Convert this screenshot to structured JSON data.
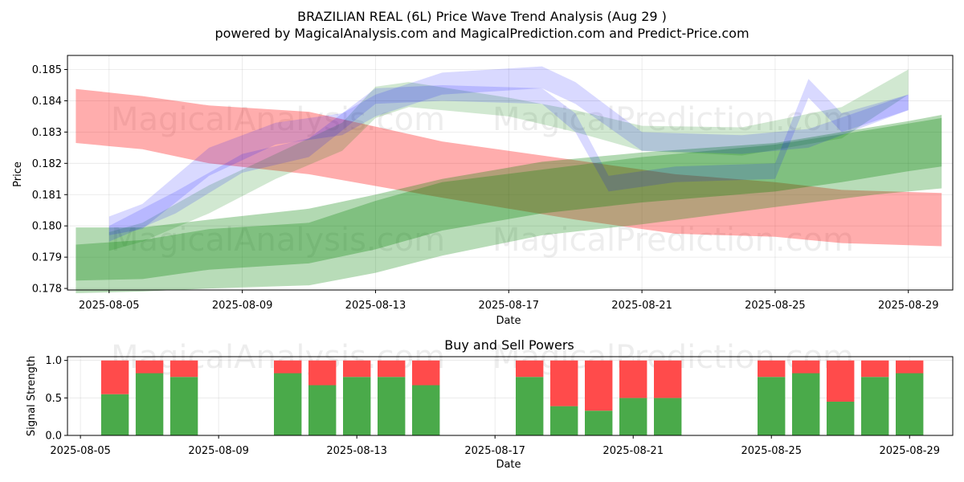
{
  "title": "BRAZILIAN REAL (6L) Price Wave Trend Analysis (Aug 29 )",
  "subtitle": "powered by MagicalAnalysis.com and MagicalPrediction.com and Predict-Price.com",
  "watermarks": [
    "MagicalAnalysis.com",
    "MagicalPrediction.com"
  ],
  "colors": {
    "red": "#ff0000",
    "green": "#008000",
    "blue": "#0000ff",
    "buy": "#4aaa4a",
    "sell": "#ff4b4b"
  },
  "chart_data": [
    {
      "type": "area",
      "title": "",
      "xlabel": "Date",
      "ylabel": "Price",
      "xlim": [
        "2025-08-03T18:00",
        "2025-08-30T08:00"
      ],
      "ylim": [
        0.17795,
        0.18545
      ],
      "x_ticks": [
        "2025-08-05",
        "2025-08-09",
        "2025-08-13",
        "2025-08-17",
        "2025-08-21",
        "2025-08-25",
        "2025-08-29"
      ],
      "y_ticks": [
        "0.178",
        "0.179",
        "0.180",
        "0.181",
        "0.182",
        "0.183",
        "0.184",
        "0.185"
      ],
      "grid": true,
      "bands": [
        {
          "color": "red",
          "opacity": 0.32,
          "x": [
            "2025-08-04",
            "2025-08-06",
            "2025-08-08",
            "2025-08-11",
            "2025-08-15",
            "2025-08-19",
            "2025-08-22",
            "2025-08-25",
            "2025-08-27",
            "2025-08-30"
          ],
          "upper": [
            0.18438,
            0.18415,
            0.18385,
            0.18365,
            0.1827,
            0.1821,
            0.18165,
            0.1814,
            0.18115,
            0.18105
          ],
          "lower": [
            0.18265,
            0.18245,
            0.182,
            0.18165,
            0.1809,
            0.1802,
            0.17975,
            0.17965,
            0.17945,
            0.17935
          ]
        },
        {
          "color": "green",
          "opacity": 0.3,
          "x": [
            "2025-08-04",
            "2025-08-06",
            "2025-08-08",
            "2025-08-11",
            "2025-08-13",
            "2025-08-15",
            "2025-08-18",
            "2025-08-21",
            "2025-08-25",
            "2025-08-27",
            "2025-08-29",
            "2025-08-30"
          ],
          "upper": [
            0.17995,
            0.17995,
            0.1802,
            0.18055,
            0.181,
            0.1815,
            0.18205,
            0.18235,
            0.18265,
            0.183,
            0.18335,
            0.18355
          ],
          "lower": [
            0.17825,
            0.1783,
            0.1786,
            0.1788,
            0.17925,
            0.17985,
            0.1804,
            0.18075,
            0.1811,
            0.1814,
            0.18175,
            0.1819
          ]
        },
        {
          "color": "green",
          "opacity": 0.28,
          "x": [
            "2025-08-04",
            "2025-08-06",
            "2025-08-08",
            "2025-08-11",
            "2025-08-13",
            "2025-08-15",
            "2025-08-18",
            "2025-08-21",
            "2025-08-25",
            "2025-08-28",
            "2025-08-30"
          ],
          "upper": [
            0.1794,
            0.17955,
            0.1799,
            0.1801,
            0.1808,
            0.1814,
            0.1818,
            0.1822,
            0.1826,
            0.1831,
            0.18345
          ],
          "lower": [
            0.17785,
            0.1779,
            0.178,
            0.1781,
            0.1785,
            0.17905,
            0.1797,
            0.18005,
            0.1806,
            0.181,
            0.1812
          ]
        },
        {
          "color": "green",
          "opacity": 0.18,
          "x": [
            "2025-08-05",
            "2025-08-06",
            "2025-08-08",
            "2025-08-10",
            "2025-08-12",
            "2025-08-13",
            "2025-08-14",
            "2025-08-17",
            "2025-08-19",
            "2025-08-21",
            "2025-08-24",
            "2025-08-27",
            "2025-08-29"
          ],
          "upper": [
            0.1798,
            0.1801,
            0.1813,
            0.1823,
            0.1833,
            0.18445,
            0.1846,
            0.1841,
            0.1837,
            0.1832,
            0.18315,
            0.1838,
            0.185
          ],
          "lower": [
            0.1792,
            0.1795,
            0.1804,
            0.1815,
            0.1824,
            0.18345,
            0.1838,
            0.1835,
            0.183,
            0.1824,
            0.18225,
            0.1828,
            0.1842
          ]
        },
        {
          "color": "blue",
          "opacity": 0.15,
          "x": [
            "2025-08-05",
            "2025-08-06",
            "2025-08-08",
            "2025-08-10",
            "2025-08-12",
            "2025-08-13",
            "2025-08-15",
            "2025-08-18",
            "2025-08-19",
            "2025-08-21",
            "2025-08-24",
            "2025-08-26",
            "2025-08-29"
          ],
          "upper": [
            0.1803,
            0.1807,
            0.1825,
            0.1833,
            0.1836,
            0.1842,
            0.1849,
            0.1851,
            0.1846,
            0.183,
            0.1829,
            0.1831,
            0.1842
          ],
          "lower": [
            0.1797,
            0.1799,
            0.1816,
            0.1826,
            0.1829,
            0.1835,
            0.1842,
            0.1844,
            0.1839,
            0.1824,
            0.1823,
            0.1825,
            0.1837
          ]
        },
        {
          "color": "blue",
          "opacity": 0.15,
          "x": [
            "2025-08-05",
            "2025-08-07",
            "2025-08-09",
            "2025-08-11",
            "2025-08-13",
            "2025-08-15",
            "2025-08-18",
            "2025-08-19",
            "2025-08-20",
            "2025-08-22",
            "2025-08-25",
            "2025-08-26",
            "2025-08-27",
            "2025-08-29"
          ],
          "upper": [
            0.18,
            0.1811,
            0.1823,
            0.1828,
            0.1844,
            0.1845,
            0.1844,
            0.1836,
            0.1816,
            0.1819,
            0.182,
            0.1847,
            0.1836,
            0.1842
          ],
          "lower": [
            0.1795,
            0.1804,
            0.1817,
            0.1822,
            0.1839,
            0.184,
            0.1839,
            0.183,
            0.1811,
            0.1814,
            0.1815,
            0.1841,
            0.183,
            0.1837
          ]
        }
      ]
    },
    {
      "type": "bar",
      "title": "Buy and Sell Powers",
      "xlabel": "Date",
      "ylabel": "Signal Strength",
      "xlim": [
        "2025-08-04T15:00",
        "2025-08-30T06:00"
      ],
      "ylim": [
        0,
        1.05
      ],
      "x_ticks": [
        "2025-08-05",
        "2025-08-09",
        "2025-08-13",
        "2025-08-17",
        "2025-08-21",
        "2025-08-25",
        "2025-08-29"
      ],
      "y_ticks": [
        "0.0",
        "0.5",
        "1.0"
      ],
      "grid": true,
      "categories": [
        "2025-08-06",
        "2025-08-07",
        "2025-08-08",
        "2025-08-11",
        "2025-08-12",
        "2025-08-13",
        "2025-08-14",
        "2025-08-15",
        "2025-08-18",
        "2025-08-19",
        "2025-08-20",
        "2025-08-21",
        "2025-08-22",
        "2025-08-25",
        "2025-08-26",
        "2025-08-27",
        "2025-08-28",
        "2025-08-29"
      ],
      "series": [
        {
          "name": "Buy",
          "values": [
            0.55,
            0.83,
            0.78,
            0.83,
            0.67,
            0.78,
            0.78,
            0.67,
            0.78,
            0.39,
            0.33,
            0.5,
            0.5,
            0.78,
            0.83,
            0.45,
            0.78,
            0.83
          ]
        },
        {
          "name": "Sell",
          "values": [
            0.45,
            0.17,
            0.22,
            0.17,
            0.33,
            0.22,
            0.22,
            0.33,
            0.22,
            0.61,
            0.67,
            0.5,
            0.5,
            0.22,
            0.17,
            0.55,
            0.22,
            0.17
          ]
        }
      ]
    }
  ]
}
